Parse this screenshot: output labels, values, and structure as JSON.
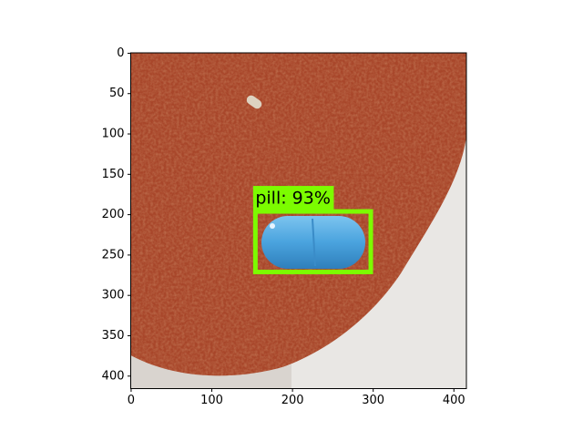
{
  "chart_data": {
    "type": "image",
    "xlim": [
      -0.5,
      415.5
    ],
    "ylim": [
      415.5,
      -0.5
    ],
    "xticks": [
      0,
      100,
      200,
      300,
      400
    ],
    "yticks": [
      0,
      50,
      100,
      150,
      200,
      250,
      300,
      350,
      400
    ],
    "boxes": [
      {
        "label": "pill: 93%",
        "x": [
          154,
          297
        ],
        "y": [
          196,
          271
        ],
        "color": "#7cfc00"
      }
    ]
  }
}
